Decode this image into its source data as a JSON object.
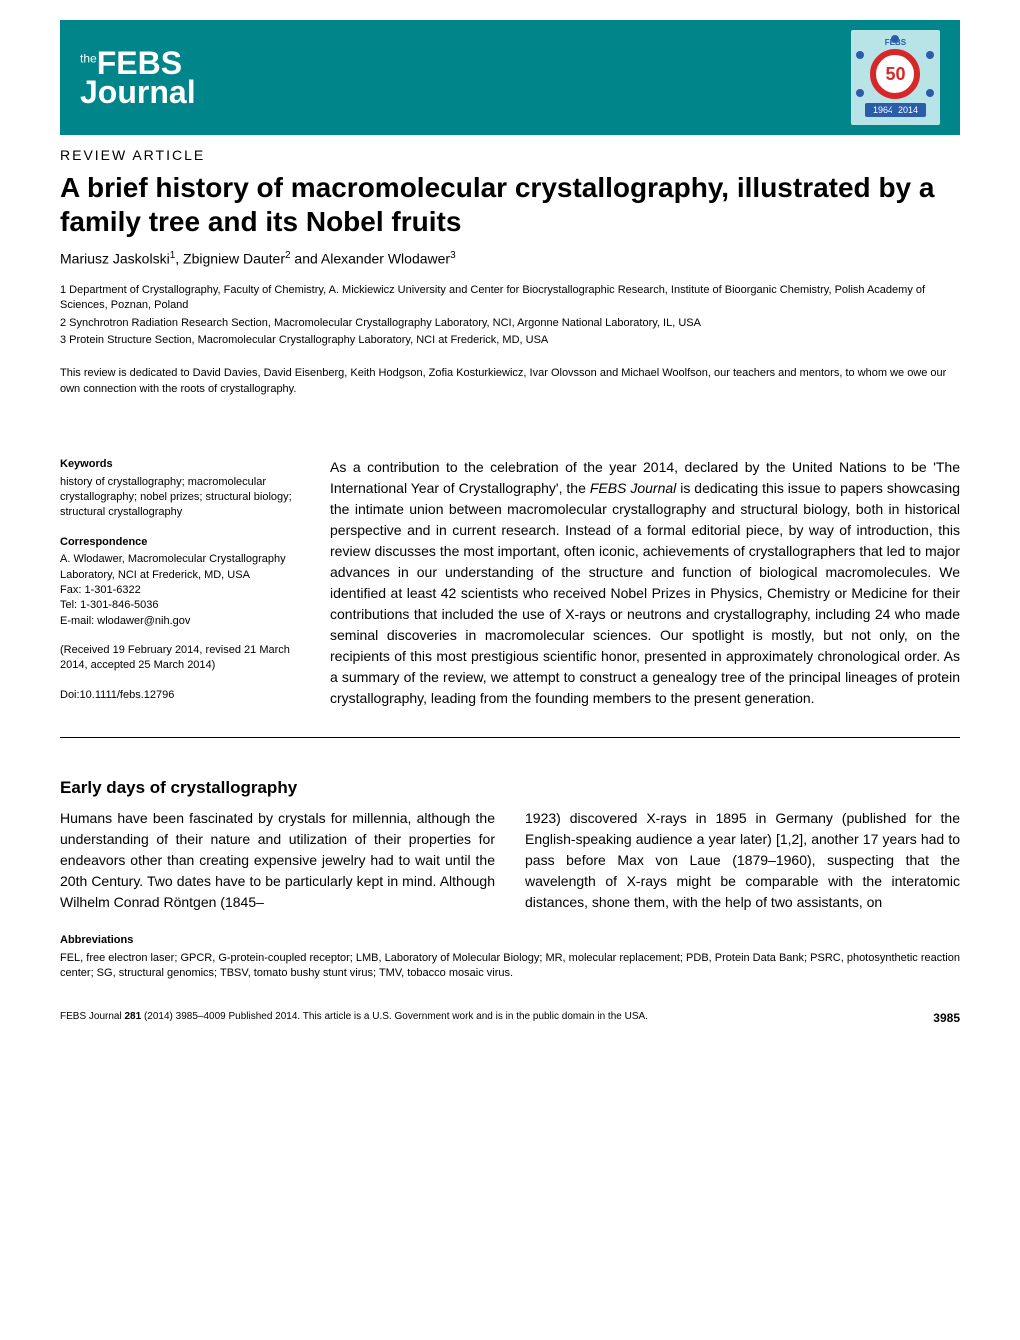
{
  "header": {
    "journal_name_prefix": "the",
    "journal_name_main": "FEBS",
    "journal_name_sub": "Journal",
    "badge_number": "50",
    "badge_top_text": "FEBS",
    "badge_years": "1964–2014"
  },
  "article": {
    "type": "REVIEW ARTICLE",
    "title": "A brief history of macromolecular crystallography, illustrated by a family tree and its Nobel fruits",
    "authors_html": "Mariusz Jaskolski<sup>1</sup>, Zbigniew Dauter<sup>2</sup> and Alexander Wlodawer<sup>3</sup>",
    "affiliations": [
      "1 Department of Crystallography, Faculty of Chemistry, A. Mickiewicz University and Center for Biocrystallographic Research, Institute of Bioorganic Chemistry, Polish Academy of Sciences, Poznan, Poland",
      "2 Synchrotron Radiation Research Section, Macromolecular Crystallography Laboratory, NCI, Argonne National Laboratory, IL, USA",
      "3 Protein Structure Section, Macromolecular Crystallography Laboratory, NCI at Frederick, MD, USA"
    ],
    "dedication": "This review is dedicated to David Davies, David Eisenberg, Keith Hodgson, Zofia Kosturkiewicz, Ivar Olovsson and Michael Woolfson, our teachers and mentors, to whom we owe our own connection with the roots of crystallography."
  },
  "meta": {
    "keywords_heading": "Keywords",
    "keywords": "history of crystallography; macromolecular crystallography; nobel prizes; structural biology; structural crystallography",
    "correspondence_heading": "Correspondence",
    "correspondence_name": "A. Wlodawer, Macromolecular Crystallography Laboratory, NCI at Frederick, MD, USA",
    "fax": "Fax: 1-301-6322",
    "tel": "Tel: 1-301-846-5036",
    "email": "E-mail: wlodawer@nih.gov",
    "received": "(Received 19 February 2014, revised 21 March 2014, accepted 25 March 2014)",
    "doi": "Doi:10.1111/febs.12796"
  },
  "abstract": "As a contribution to the celebration of the year 2014, declared by the United Nations to be 'The International Year of Crystallography', the FEBS Journal is dedicating this issue to papers showcasing the intimate union between macromolecular crystallography and structural biology, both in historical perspective and in current research. Instead of a formal editorial piece, by way of introduction, this review discusses the most important, often iconic, achievements of crystallographers that led to major advances in our understanding of the structure and function of biological macromolecules. We identified at least 42 scientists who received Nobel Prizes in Physics, Chemistry or Medicine for their contributions that included the use of X-rays or neutrons and crystallography, including 24 who made seminal discoveries in macromolecular sciences. Our spotlight is mostly, but not only, on the recipients of this most prestigious scientific honor, presented in approximately chronological order. As a summary of the review, we attempt to construct a genealogy tree of the principal lineages of protein crystallography, leading from the founding members to the present generation.",
  "section": {
    "heading": "Early days of crystallography",
    "col1": "Humans have been fascinated by crystals for millennia, although the understanding of their nature and utilization of their properties for endeavors other than creating expensive jewelry had to wait until the 20th Century. Two dates have to be particularly kept in mind. Although Wilhelm Conrad Röntgen (1845–",
    "col2": "1923) discovered X-rays in 1895 in Germany (published for the English-speaking audience a year later) [1,2], another 17 years had to pass before Max von Laue (1879–1960), suspecting that the wavelength of X-rays might be comparable with the interatomic distances, shone them, with the help of two assistants, on"
  },
  "abbreviations": {
    "heading": "Abbreviations",
    "text": "FEL, free electron laser; GPCR, G-protein-coupled receptor; LMB, Laboratory of Molecular Biology; MR, molecular replacement; PDB, Protein Data Bank; PSRC, photosynthetic reaction center; SG, structural genomics; TBSV, tomato bushy stunt virus; TMV, tobacco mosaic virus."
  },
  "footer": {
    "citation": "FEBS Journal 281 (2014) 3985–4009 Published 2014. This article is a U.S. Government work and is in the public domain in the USA.",
    "page": "3985"
  },
  "colors": {
    "header_bg": "#00858a",
    "badge_bg": "#b8e4e7",
    "badge_circle_border": "#d62828",
    "badge_years_bg": "#2a5caa",
    "text": "#000000",
    "page_bg": "#ffffff"
  }
}
